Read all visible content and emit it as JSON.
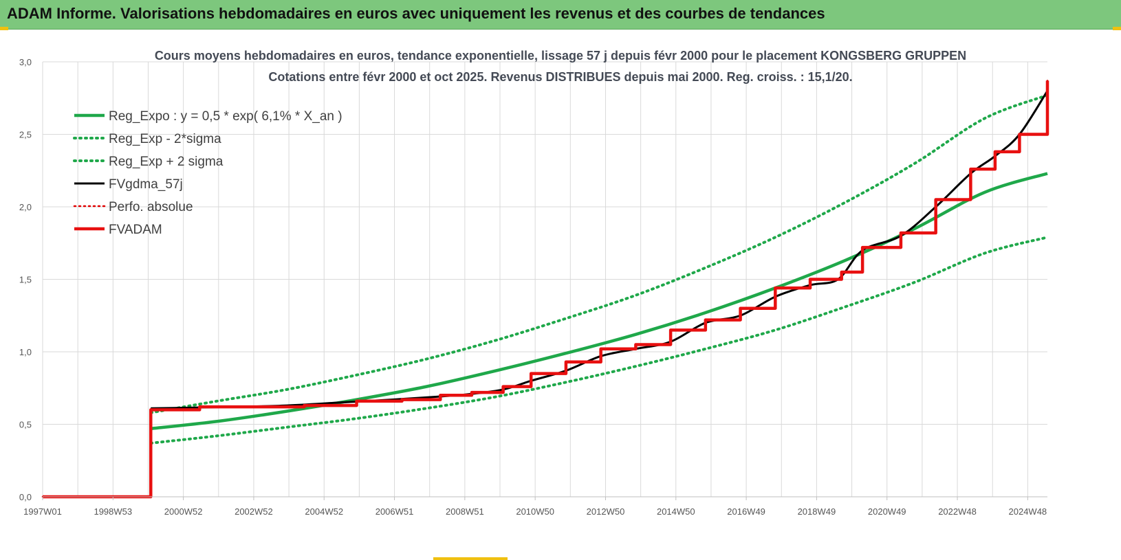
{
  "header": {
    "title": "ADAM Informe. Valorisations hebdomadaires en euros avec uniquement les revenus et des courbes de tendances"
  },
  "colors": {
    "banner": "#7dc77d",
    "accent_yellow": "#f0c010",
    "trend_green": "#1fa84a",
    "band_green": "#1fa84a",
    "fvgdma_black": "#000000",
    "perfo_red": "#e00000",
    "fvadam_red": "#e81010"
  },
  "chart_data": {
    "type": "line",
    "title": "Cours moyens hebdomadaires en euros, tendance exponentielle, lissage 57 j depuis févr 2000 pour le placement KONGSBERG GRUPPEN",
    "subtitle": "Cotations entre févr 2000 et oct 2025. Revenus DISTRIBUES depuis mai 2000. Reg. croiss. : 15,1/20.",
    "xlabel": "",
    "ylabel": "",
    "x_tick_labels": [
      "1997W01",
      "1998W53",
      "2000W52",
      "2002W52",
      "2004W52",
      "2006W51",
      "2008W51",
      "2010W50",
      "2012W50",
      "2014W50",
      "2016W49",
      "2018W49",
      "2020W49",
      "2022W48",
      "2024W48"
    ],
    "x_range": [
      1997.0,
      2025.8
    ],
    "ylim": [
      0,
      3
    ],
    "y_ticks": [
      "0,0",
      "0,5",
      "1,0",
      "1,5",
      "2,0",
      "2,5",
      "3,0"
    ],
    "grid": true,
    "legend_position": "top-left",
    "series": [
      {
        "name": "Reg_Expo : y = 0,5 * exp( 6,1% *  X_an )",
        "style": "solid-green",
        "x": [
          2000.1,
          2002.0,
          2004.0,
          2006.0,
          2008.0,
          2010.0,
          2012.0,
          2014.0,
          2016.0,
          2018.0,
          2020.0,
          2022.0,
          2024.0,
          2025.8
        ],
        "y": [
          0.47,
          0.52,
          0.59,
          0.67,
          0.76,
          0.87,
          0.99,
          1.12,
          1.27,
          1.44,
          1.63,
          1.85,
          2.1,
          2.23
        ]
      },
      {
        "name": "Reg_Exp - 2*sigma",
        "style": "dotted-green",
        "x": [
          2000.1,
          2002.0,
          2004.0,
          2006.0,
          2008.0,
          2010.0,
          2012.0,
          2014.0,
          2016.0,
          2018.0,
          2020.0,
          2022.0,
          2024.0,
          2025.8
        ],
        "y": [
          0.37,
          0.42,
          0.48,
          0.54,
          0.61,
          0.69,
          0.79,
          0.9,
          1.02,
          1.15,
          1.31,
          1.48,
          1.68,
          1.79
        ]
      },
      {
        "name": "Reg_Exp + 2 sigma",
        "style": "dotted-green",
        "x": [
          2000.1,
          2002.0,
          2004.0,
          2006.0,
          2008.0,
          2010.0,
          2012.0,
          2014.0,
          2016.0,
          2018.0,
          2020.0,
          2022.0,
          2024.0,
          2025.8
        ],
        "y": [
          0.58,
          0.66,
          0.74,
          0.84,
          0.95,
          1.08,
          1.23,
          1.39,
          1.58,
          1.79,
          2.03,
          2.3,
          2.61,
          2.77
        ]
      },
      {
        "name": "FVgdma_57j",
        "style": "solid-black",
        "x": [
          2000.1,
          2002.5,
          2004.0,
          2005.5,
          2007.0,
          2008.3,
          2009.3,
          2010.2,
          2011.0,
          2012.0,
          2013.0,
          2014.0,
          2015.0,
          2016.0,
          2017.0,
          2018.0,
          2019.0,
          2019.8,
          2020.5,
          2021.6,
          2022.6,
          2023.6,
          2024.3,
          2025.0,
          2025.8
        ],
        "y": [
          0.61,
          0.62,
          0.63,
          0.65,
          0.67,
          0.69,
          0.71,
          0.74,
          0.8,
          0.87,
          0.97,
          1.02,
          1.07,
          1.2,
          1.25,
          1.38,
          1.46,
          1.5,
          1.7,
          1.8,
          2.0,
          2.23,
          2.35,
          2.5,
          2.8
        ]
      },
      {
        "name": "Perfo. absolue",
        "style": "dotted-red",
        "x": [
          1997.0,
          2000.05,
          2000.1,
          2001.5,
          2003.0,
          2004.5,
          2006.0,
          2007.3,
          2008.4,
          2009.3,
          2010.2,
          2011.0,
          2012.0,
          2013.0,
          2014.0,
          2015.0,
          2016.0,
          2017.0,
          2018.0,
          2019.0,
          2019.9,
          2020.5,
          2021.6,
          2022.6,
          2023.6,
          2024.3,
          2025.0,
          2025.8
        ],
        "y": [
          0.0,
          0.0,
          0.6,
          0.62,
          0.62,
          0.63,
          0.66,
          0.67,
          0.7,
          0.72,
          0.76,
          0.85,
          0.93,
          1.02,
          1.05,
          1.15,
          1.22,
          1.3,
          1.44,
          1.5,
          1.55,
          1.72,
          1.82,
          2.05,
          2.26,
          2.38,
          2.5,
          2.87
        ]
      },
      {
        "name": "FVADAM",
        "style": "solid-red-thick",
        "x": [
          1997.0,
          2000.05,
          2000.1,
          2001.5,
          2003.0,
          2004.5,
          2006.0,
          2007.3,
          2008.4,
          2009.3,
          2010.2,
          2011.0,
          2012.0,
          2013.0,
          2014.0,
          2015.0,
          2016.0,
          2017.0,
          2018.0,
          2019.0,
          2019.9,
          2020.5,
          2021.6,
          2022.6,
          2023.6,
          2024.3,
          2025.0,
          2025.8
        ],
        "y": [
          0.0,
          0.0,
          0.6,
          0.62,
          0.62,
          0.63,
          0.66,
          0.67,
          0.7,
          0.72,
          0.76,
          0.85,
          0.93,
          1.02,
          1.05,
          1.15,
          1.22,
          1.3,
          1.44,
          1.5,
          1.55,
          1.72,
          1.82,
          2.05,
          2.26,
          2.38,
          2.5,
          2.87
        ]
      }
    ]
  }
}
